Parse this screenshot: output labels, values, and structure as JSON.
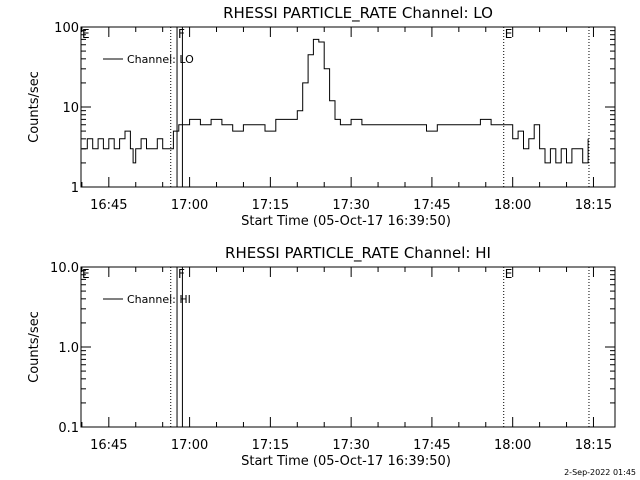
{
  "chart_data": [
    {
      "type": "line",
      "title": "RHESSI PARTICLE_RATE Channel: LO",
      "xlabel": "Start Time (05-Oct-17 16:39:50)",
      "ylabel": "Counts/sec",
      "yscale": "log",
      "xlim": [
        "16:39:50",
        "18:19:00"
      ],
      "ylim": [
        1,
        100
      ],
      "x_tick_labels": [
        "16:45",
        "17:00",
        "17:15",
        "17:30",
        "17:45",
        "18:00",
        "18:15"
      ],
      "x_ticks": [
        "16:45",
        "17:00",
        "17:15",
        "17:30",
        "17:45",
        "18:00",
        "18:15"
      ],
      "y_tick_labels": [
        "1",
        "10",
        "100"
      ],
      "y_ticks": [
        1,
        10,
        100
      ],
      "legend": {
        "position": "top-left",
        "entries": [
          "Channel: LO"
        ]
      },
      "markers": [
        {
          "label": "E",
          "time": "16:39:50",
          "style": "label-only"
        },
        {
          "label": "",
          "time": "16:56:30",
          "style": "dotted"
        },
        {
          "label": "F",
          "time": "16:57:40",
          "style": "solid"
        },
        {
          "label": "",
          "time": "16:58:40",
          "style": "solid"
        },
        {
          "label": "E",
          "time": "17:58:20",
          "style": "dotted"
        },
        {
          "label": "",
          "time": "18:14:10",
          "style": "dotted"
        }
      ],
      "series": [
        {
          "name": "Channel: LO",
          "points": [
            [
              "16:40:00",
              3.0
            ],
            [
              "16:41:00",
              4.0
            ],
            [
              "16:42:00",
              3.0
            ],
            [
              "16:43:00",
              4.0
            ],
            [
              "16:44:00",
              3.0
            ],
            [
              "16:45:00",
              4.0
            ],
            [
              "16:46:00",
              3.0
            ],
            [
              "16:47:00",
              4.0
            ],
            [
              "16:48:00",
              5.0
            ],
            [
              "16:49:00",
              3.0
            ],
            [
              "16:49:30",
              2.0
            ],
            [
              "16:50:00",
              3.0
            ],
            [
              "16:51:00",
              4.0
            ],
            [
              "16:52:00",
              3.0
            ],
            [
              "16:53:00",
              3.0
            ],
            [
              "16:54:00",
              4.0
            ],
            [
              "16:55:00",
              3.0
            ],
            [
              "16:56:00",
              3.0
            ],
            [
              "16:57:00",
              5.0
            ],
            [
              "16:58:00",
              6.0
            ],
            [
              "17:00:00",
              7.0
            ],
            [
              "17:02:00",
              6.0
            ],
            [
              "17:04:00",
              7.0
            ],
            [
              "17:06:00",
              6.0
            ],
            [
              "17:08:00",
              5.0
            ],
            [
              "17:10:00",
              6.0
            ],
            [
              "17:12:00",
              6.0
            ],
            [
              "17:14:00",
              5.0
            ],
            [
              "17:16:00",
              7.0
            ],
            [
              "17:18:00",
              7.0
            ],
            [
              "17:20:00",
              9.0
            ],
            [
              "17:21:00",
              20.0
            ],
            [
              "17:22:00",
              45.0
            ],
            [
              "17:23:00",
              70.0
            ],
            [
              "17:24:00",
              65.0
            ],
            [
              "17:25:00",
              30.0
            ],
            [
              "17:26:00",
              12.0
            ],
            [
              "17:27:00",
              7.0
            ],
            [
              "17:28:00",
              6.0
            ],
            [
              "17:30:00",
              7.0
            ],
            [
              "17:32:00",
              6.0
            ],
            [
              "17:34:00",
              6.0
            ],
            [
              "17:36:00",
              6.0
            ],
            [
              "17:38:00",
              6.0
            ],
            [
              "17:40:00",
              6.0
            ],
            [
              "17:42:00",
              6.0
            ],
            [
              "17:44:00",
              5.0
            ],
            [
              "17:46:00",
              6.0
            ],
            [
              "17:48:00",
              6.0
            ],
            [
              "17:50:00",
              6.0
            ],
            [
              "17:52:00",
              6.0
            ],
            [
              "17:54:00",
              7.0
            ],
            [
              "17:56:00",
              6.0
            ],
            [
              "17:58:00",
              6.0
            ],
            [
              "18:00:00",
              4.0
            ],
            [
              "18:01:00",
              5.0
            ],
            [
              "18:02:00",
              3.0
            ],
            [
              "18:03:00",
              4.0
            ],
            [
              "18:04:00",
              6.0
            ],
            [
              "18:05:00",
              3.0
            ],
            [
              "18:06:00",
              2.0
            ],
            [
              "18:07:00",
              3.0
            ],
            [
              "18:08:00",
              2.0
            ],
            [
              "18:09:00",
              3.0
            ],
            [
              "18:10:00",
              2.0
            ],
            [
              "18:11:00",
              3.0
            ],
            [
              "18:12:00",
              3.0
            ],
            [
              "18:13:00",
              2.0
            ],
            [
              "18:14:00",
              4.0
            ]
          ]
        }
      ]
    },
    {
      "type": "line",
      "title": "RHESSI PARTICLE_RATE Channel: HI",
      "xlabel": "Start Time (05-Oct-17 16:39:50)",
      "ylabel": "Counts/sec",
      "yscale": "log",
      "xlim": [
        "16:39:50",
        "18:19:00"
      ],
      "ylim": [
        0.1,
        10
      ],
      "x_tick_labels": [
        "16:45",
        "17:00",
        "17:15",
        "17:30",
        "17:45",
        "18:00",
        "18:15"
      ],
      "x_ticks": [
        "16:45",
        "17:00",
        "17:15",
        "17:30",
        "17:45",
        "18:00",
        "18:15"
      ],
      "y_tick_labels": [
        "0.1",
        "1.0",
        "10.0"
      ],
      "y_ticks": [
        0.1,
        1,
        10
      ],
      "legend": {
        "position": "top-left",
        "entries": [
          "Channel: HI"
        ]
      },
      "markers": [
        {
          "label": "E",
          "time": "16:39:50",
          "style": "label-only"
        },
        {
          "label": "",
          "time": "16:56:30",
          "style": "dotted"
        },
        {
          "label": "F",
          "time": "16:57:40",
          "style": "solid"
        },
        {
          "label": "",
          "time": "16:58:40",
          "style": "solid"
        },
        {
          "label": "E",
          "time": "17:58:20",
          "style": "dotted"
        },
        {
          "label": "",
          "time": "18:14:10",
          "style": "dotted"
        }
      ],
      "series": [
        {
          "name": "Channel: HI",
          "points": []
        }
      ]
    }
  ],
  "footer": {
    "stamp": "2-Sep-2022 01:45"
  }
}
